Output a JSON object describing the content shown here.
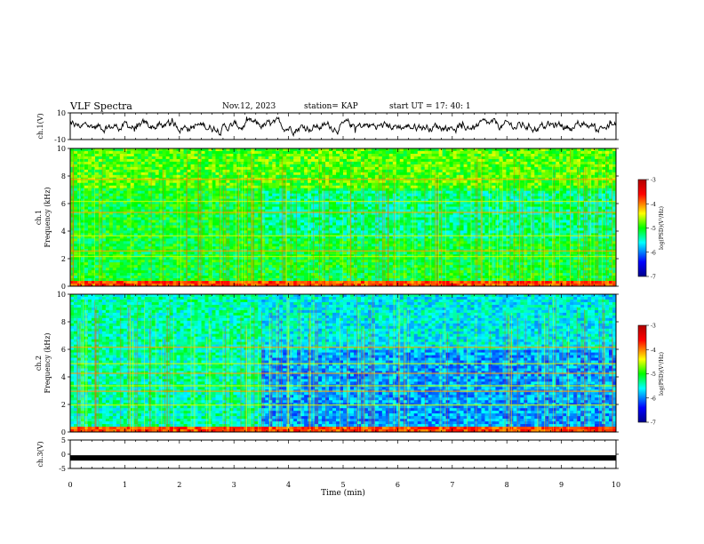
{
  "header": {
    "title": "VLF Spectra",
    "date": "Nov.12, 2023",
    "station": "station= KAP",
    "start": "start  UT =   17: 40: 1"
  },
  "colors": {
    "trace": "#000000",
    "colormap": [
      "#00008b",
      "#0000ff",
      "#00ffff",
      "#00ff00",
      "#ffff00",
      "#ff0000",
      "#b00000"
    ]
  },
  "chart_data": [
    {
      "type": "line",
      "name": "ch1-waveform",
      "ylabel": "ch.1(V)",
      "ylim": [
        -10,
        10
      ],
      "yticks": [
        "10",
        "-10"
      ],
      "xlim": [
        0,
        10
      ]
    },
    {
      "type": "heatmap",
      "name": "ch1-spectrogram",
      "ylabel_line1": "ch.1",
      "ylabel_line2": "Frequency  (kHz)",
      "ylim": [
        0,
        10
      ],
      "yticks": [
        "0",
        "2",
        "4",
        "6",
        "8",
        "10"
      ],
      "xlim": [
        0,
        10
      ],
      "colorbar": {
        "label": "log(PSD)(V²/Hz)",
        "range": [
          -7,
          -3
        ],
        "ticks": [
          "-3",
          "-4",
          "-5",
          "-6",
          "-7"
        ]
      }
    },
    {
      "type": "heatmap",
      "name": "ch2-spectrogram",
      "ylabel_line1": "ch.2",
      "ylabel_line2": "Frequency  (kHz)",
      "ylim": [
        0,
        10
      ],
      "yticks": [
        "0",
        "2",
        "4",
        "6",
        "8",
        "10"
      ],
      "xlim": [
        0,
        10
      ],
      "colorbar": {
        "label": "log(PSD)(V²/Hz)",
        "range": [
          -7,
          -3
        ],
        "ticks": [
          "-3",
          "-4",
          "-5",
          "-6",
          "-7"
        ]
      }
    },
    {
      "type": "line",
      "name": "ch3-waveform",
      "ylabel": "ch.3(V)",
      "ylim": [
        -5,
        5
      ],
      "yticks": [
        "5",
        "0",
        "-5"
      ],
      "xlim": [
        0,
        10
      ],
      "level": -1.3
    }
  ],
  "xaxis": {
    "label": "Time  (min)",
    "ticks": [
      "0",
      "1",
      "2",
      "3",
      "4",
      "5",
      "6",
      "7",
      "8",
      "9",
      "10"
    ]
  }
}
